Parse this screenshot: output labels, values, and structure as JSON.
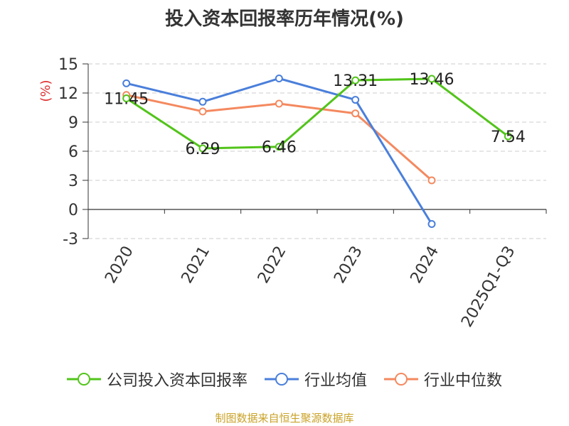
{
  "chart_data": {
    "type": "line",
    "title": "投入资本回报率历年情况(%)",
    "ylabel": "(%)",
    "categories": [
      "2020",
      "2021",
      "2022",
      "2023",
      "2024",
      "2025Q1-Q3"
    ],
    "yticks": [
      15,
      12,
      9,
      6,
      3,
      0,
      -3
    ],
    "ylim": [
      -3,
      15
    ],
    "grid": true,
    "legend_position": "bottom",
    "series": [
      {
        "name": "公司投入资本回报率",
        "color": "#52c41a",
        "values": [
          11.45,
          6.29,
          6.46,
          13.31,
          13.46,
          7.54
        ],
        "labels": [
          "11.45",
          "6.29",
          "6.46",
          "13.31",
          "13.46",
          "7.54"
        ]
      },
      {
        "name": "行业均值",
        "color": "#4a7fdb",
        "values": [
          13.0,
          11.1,
          13.5,
          11.3,
          -1.5,
          null
        ]
      },
      {
        "name": "行业中位数",
        "color": "#f4895f",
        "values": [
          11.8,
          10.1,
          10.9,
          9.9,
          3.0,
          null
        ]
      }
    ],
    "source": "制图数据来自恒生聚源数据库"
  }
}
